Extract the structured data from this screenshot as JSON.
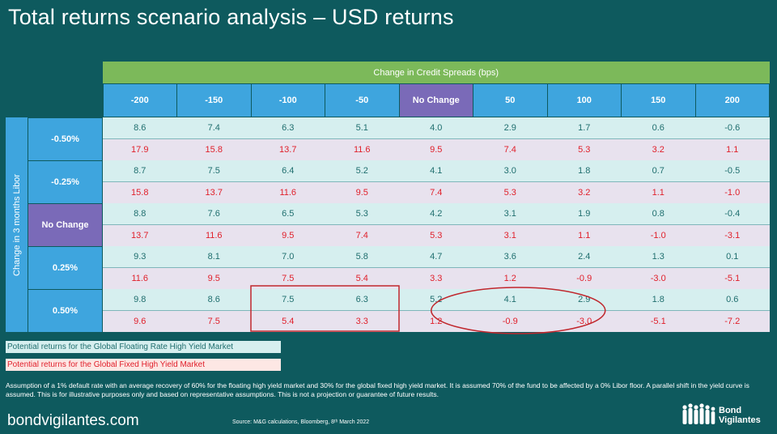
{
  "page": {
    "title": "Total returns scenario analysis – USD returns",
    "website": "bondvigilantes.com",
    "source": "Source: M&G calculations, Bloomberg, 8ᵗʰ March 2022",
    "brand_line1": "Bond",
    "brand_line2": "Vigilantes",
    "footnote": "Assumption of a 1% default rate with an average recovery of 60% for the  floating high yield market and 30% for the  global fixed high yield market. It is assumed 70% of the fund to be affected by a 0% Libor floor. A parallel shift in the yield curve is assumed. This is for illustrative purposes only and based on representative assumptions. This is not a projection or guarantee of future results."
  },
  "legend": {
    "float_label": "Potential returns  for the Global Floating Rate High Yield Market",
    "fixed_label": "Potential returns  for the Global Fixed High Yield Market",
    "float_color": "#d6efef",
    "fixed_color": "#fde7e4"
  },
  "chart_data": {
    "type": "table",
    "column_title": "Change in Credit Spreads (bps)",
    "row_title": "Change in 3 months Libor",
    "columns": [
      "-200",
      "-150",
      "-100",
      "-50",
      "No Change",
      "50",
      "100",
      "150",
      "200"
    ],
    "rows": [
      "-0.50%",
      "-0.25%",
      "No Change",
      "0.25%",
      "0.50%"
    ],
    "series": [
      {
        "name": "Potential returns  for the Global Floating Rate High Yield Market",
        "values": [
          [
            "8.6",
            "7.4",
            "6.3",
            "5.1",
            "4.0",
            "2.9",
            "1.7",
            "0.6",
            "-0.6"
          ],
          [
            "8.7",
            "7.5",
            "6.4",
            "5.2",
            "4.1",
            "3.0",
            "1.8",
            "0.7",
            "-0.5"
          ],
          [
            "8.8",
            "7.6",
            "6.5",
            "5.3",
            "4.2",
            "3.1",
            "1.9",
            "0.8",
            "-0.4"
          ],
          [
            "9.3",
            "8.1",
            "7.0",
            "5.8",
            "4.7",
            "3.6",
            "2.4",
            "1.3",
            "0.1"
          ],
          [
            "9.8",
            "8.6",
            "7.5",
            "6.3",
            "5.2",
            "4.1",
            "2.9",
            "1.8",
            "0.6"
          ]
        ]
      },
      {
        "name": "Potential returns  for the Global Fixed High Yield Market",
        "values": [
          [
            "17.9",
            "15.8",
            "13.7",
            "11.6",
            "9.5",
            "7.4",
            "5.3",
            "3.2",
            "1.1"
          ],
          [
            "15.8",
            "13.7",
            "11.6",
            "9.5",
            "7.4",
            "5.3",
            "3.2",
            "1.1",
            "-1.0"
          ],
          [
            "13.7",
            "11.6",
            "9.5",
            "7.4",
            "5.3",
            "3.1",
            "1.1",
            "-1.0",
            "-3.1"
          ],
          [
            "11.6",
            "9.5",
            "7.5",
            "5.4",
            "3.3",
            "1.2",
            "-0.9",
            "-3.0",
            "-5.1"
          ],
          [
            "9.6",
            "7.5",
            "5.4",
            "3.3",
            "1.2",
            "-0.9",
            "-3.0",
            "-5.1",
            "-7.2"
          ]
        ]
      }
    ],
    "colors": {
      "header_green": "#7cb95a",
      "header_blue": "#3ea5de",
      "no_change_purple": "#7a6ab8",
      "float_text": "#1f6e6e",
      "fixed_text": "#e0202b",
      "highlight": "#c0272d"
    }
  }
}
